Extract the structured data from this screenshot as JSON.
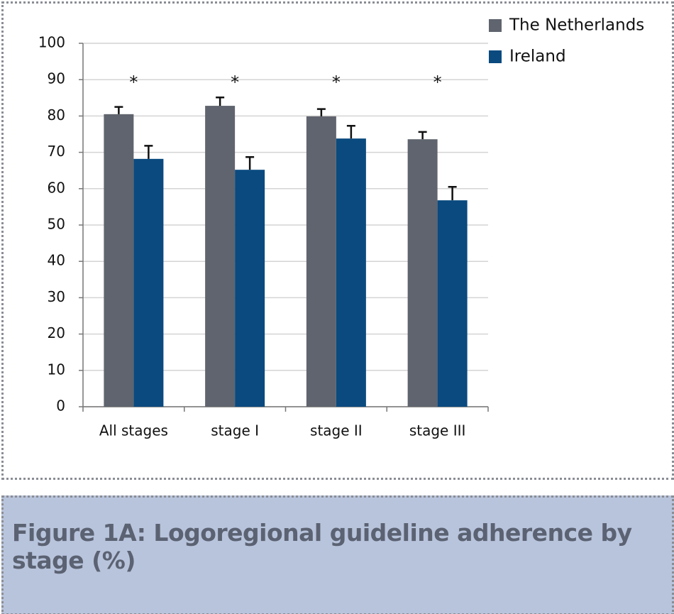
{
  "chart_data": {
    "type": "bar",
    "title": "Figure 1A: Logoregional guideline adherence by stage (%)",
    "categories": [
      "All stages",
      "stage I",
      "stage II",
      "stage III"
    ],
    "series": [
      {
        "name": "The Netherlands",
        "color": "#60646e",
        "values": [
          80.5,
          82.8,
          79.9,
          73.6
        ],
        "errors": [
          2.0,
          2.3,
          2.0,
          2.0
        ]
      },
      {
        "name": "Ireland",
        "color": "#0a4a7f",
        "values": [
          68.2,
          65.2,
          73.8,
          56.8
        ],
        "errors": [
          3.6,
          3.5,
          3.5,
          3.7
        ]
      }
    ],
    "annotations": [
      "*",
      "*",
      "*",
      "*"
    ],
    "ylim": [
      0,
      100
    ],
    "yticks": [
      0,
      10,
      20,
      30,
      40,
      50,
      60,
      70,
      80,
      90,
      100
    ],
    "grid": true,
    "legend": "top-right"
  }
}
